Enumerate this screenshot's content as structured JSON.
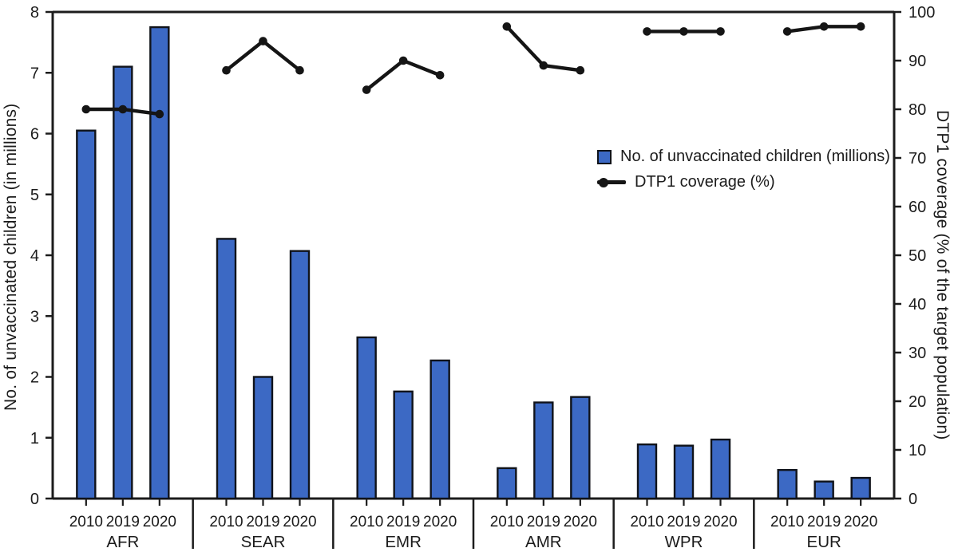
{
  "chart_data": {
    "type": "bar",
    "subtype": "bar-line-combo",
    "title": "",
    "categories": [
      "AFR",
      "SEAR",
      "EMR",
      "AMR",
      "WPR",
      "EUR"
    ],
    "years": [
      "2010",
      "2019",
      "2020"
    ],
    "series": [
      {
        "name": "No. of unvaccinated children (millions)",
        "kind": "bar",
        "axis": "left",
        "values": [
          [
            6.05,
            7.1,
            7.75
          ],
          [
            4.27,
            2.0,
            4.07
          ],
          [
            2.65,
            1.76,
            2.27
          ],
          [
            0.5,
            1.58,
            1.67
          ],
          [
            0.89,
            0.87,
            0.97
          ],
          [
            0.47,
            0.28,
            0.34
          ]
        ]
      },
      {
        "name": "DTP1 coverage (%)",
        "kind": "line",
        "axis": "right",
        "values": [
          [
            80,
            80,
            79
          ],
          [
            88,
            94,
            88
          ],
          [
            84,
            90,
            87
          ],
          [
            97,
            89,
            88
          ],
          [
            96,
            96,
            96
          ],
          [
            96,
            97,
            97
          ]
        ]
      }
    ],
    "left_axis": {
      "label": "No. of unvaccinated children (in millions)",
      "min": 0,
      "max": 8,
      "tick_step": 1,
      "tick_labels": [
        "0",
        "1",
        "2",
        "3",
        "4",
        "5",
        "6",
        "7",
        "8"
      ]
    },
    "right_axis": {
      "label": "DTP1 coverage (% of the target population)",
      "min": 0,
      "max": 100,
      "tick_step": 10,
      "tick_labels": [
        "0",
        "10",
        "20",
        "30",
        "40",
        "50",
        "60",
        "70",
        "80",
        "90",
        "100"
      ]
    },
    "legend": [
      "No. of unvaccinated children (millions)",
      "DTP1 coverage (%)"
    ],
    "legend_position": "inside-top-right",
    "grid": false,
    "colors": {
      "bar_fill": "#3c69c4",
      "bar_stroke": "#10131a",
      "line": "#151515",
      "axis": "#1c1c1c",
      "text": "#1c1c1c"
    }
  }
}
